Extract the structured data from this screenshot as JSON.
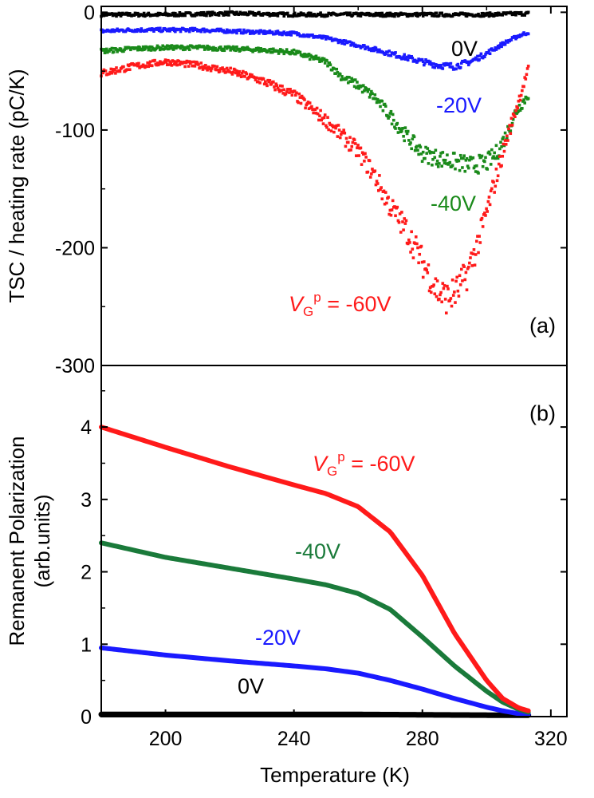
{
  "chart_data": [
    {
      "type": "scatter",
      "panel_label": "(a)",
      "xlabel": "",
      "ylabel": "TSC / heating rate (pC/K)",
      "xlim": [
        180,
        325
      ],
      "ylim": [
        -300,
        5
      ],
      "yticks": [
        "0",
        "-100",
        "-200",
        "-300"
      ],
      "ytick_values": [
        0,
        -100,
        -200,
        -300
      ],
      "series": [
        {
          "label": "0V",
          "color": "#000000",
          "x": [
            180,
            200,
            220,
            240,
            260,
            280,
            300,
            313
          ],
          "y": [
            -2,
            -2,
            -1,
            -2,
            -2,
            -2,
            -2,
            -1
          ]
        },
        {
          "label": "-20V",
          "color": "#1a1aff",
          "x": [
            180,
            190,
            200,
            210,
            220,
            230,
            240,
            250,
            260,
            270,
            280,
            285,
            290,
            295,
            300,
            305,
            310,
            313
          ],
          "y": [
            -16,
            -15,
            -15,
            -15,
            -16,
            -17,
            -18,
            -22,
            -28,
            -35,
            -42,
            -45,
            -46,
            -42,
            -35,
            -27,
            -20,
            -17
          ]
        },
        {
          "label": "-40V",
          "color": "#1a8a1a",
          "x": [
            180,
            190,
            200,
            210,
            220,
            230,
            240,
            250,
            255,
            260,
            265,
            270,
            275,
            280,
            285,
            290,
            295,
            300,
            303,
            306,
            309,
            313
          ],
          "y": [
            -33,
            -31,
            -30,
            -30,
            -31,
            -32,
            -34,
            -42,
            -55,
            -62,
            -72,
            -88,
            -105,
            -120,
            -124,
            -127,
            -130,
            -128,
            -120,
            -105,
            -85,
            -70
          ]
        },
        {
          "label": "-60V",
          "color": "#ff1a1a",
          "x": [
            180,
            190,
            200,
            210,
            220,
            230,
            240,
            250,
            260,
            265,
            270,
            275,
            280,
            285,
            288,
            291,
            294,
            298,
            302,
            306,
            310,
            313
          ],
          "y": [
            -52,
            -46,
            -42,
            -45,
            -50,
            -58,
            -70,
            -92,
            -118,
            -138,
            -165,
            -185,
            -212,
            -238,
            -243,
            -236,
            -222,
            -190,
            -150,
            -110,
            -75,
            -48
          ]
        }
      ]
    },
    {
      "type": "line",
      "panel_label": "(b)",
      "xlabel": "Temperature (K)",
      "ylabel_line1": "Remanent Polarization",
      "ylabel_line2": "(arb.units)",
      "xlim": [
        180,
        325
      ],
      "ylim": [
        0,
        4.85
      ],
      "xticks": [
        "200",
        "240",
        "280",
        "320"
      ],
      "xtick_values": [
        200,
        240,
        280,
        320
      ],
      "yticks": [
        "0",
        "1",
        "2",
        "3",
        "4"
      ],
      "ytick_values": [
        0,
        1,
        2,
        3,
        4
      ],
      "series": [
        {
          "label": "0V",
          "color": "#000000",
          "x": [
            180,
            220,
            260,
            300,
            313
          ],
          "y": [
            0.03,
            0.03,
            0.03,
            0.02,
            0.02
          ]
        },
        {
          "label": "-20V",
          "color": "#1a1aff",
          "x": [
            180,
            200,
            220,
            240,
            250,
            260,
            270,
            280,
            290,
            300,
            305,
            310,
            313
          ],
          "y": [
            0.95,
            0.85,
            0.77,
            0.7,
            0.66,
            0.6,
            0.5,
            0.38,
            0.25,
            0.13,
            0.08,
            0.04,
            0.03
          ]
        },
        {
          "label": "-40V",
          "color": "#1a7a3a",
          "x": [
            180,
            200,
            220,
            240,
            250,
            260,
            270,
            280,
            290,
            300,
            305,
            310,
            313
          ],
          "y": [
            2.4,
            2.2,
            2.05,
            1.9,
            1.82,
            1.7,
            1.48,
            1.1,
            0.7,
            0.35,
            0.2,
            0.1,
            0.06
          ]
        },
        {
          "label": "-60V",
          "color": "#ff1a1a",
          "x": [
            180,
            200,
            220,
            240,
            250,
            260,
            270,
            280,
            290,
            300,
            305,
            310,
            313
          ],
          "y": [
            4.0,
            3.72,
            3.45,
            3.2,
            3.08,
            2.9,
            2.55,
            1.95,
            1.15,
            0.5,
            0.25,
            0.12,
            0.08
          ]
        }
      ]
    }
  ],
  "labels": {
    "a_0v": "0V",
    "a_20v": "-20V",
    "a_40v": "-40V",
    "a_60v_prefix": "V",
    "a_60v_sub": "G",
    "a_60v_sup": "p",
    "a_60v_rest": " = -60V",
    "b_0v": "0V",
    "b_20v": "-20V",
    "b_40v": "-40V",
    "b_60v_prefix": "V",
    "b_60v_sub": "G",
    "b_60v_sup": "p",
    "b_60v_rest": " = -60V"
  }
}
